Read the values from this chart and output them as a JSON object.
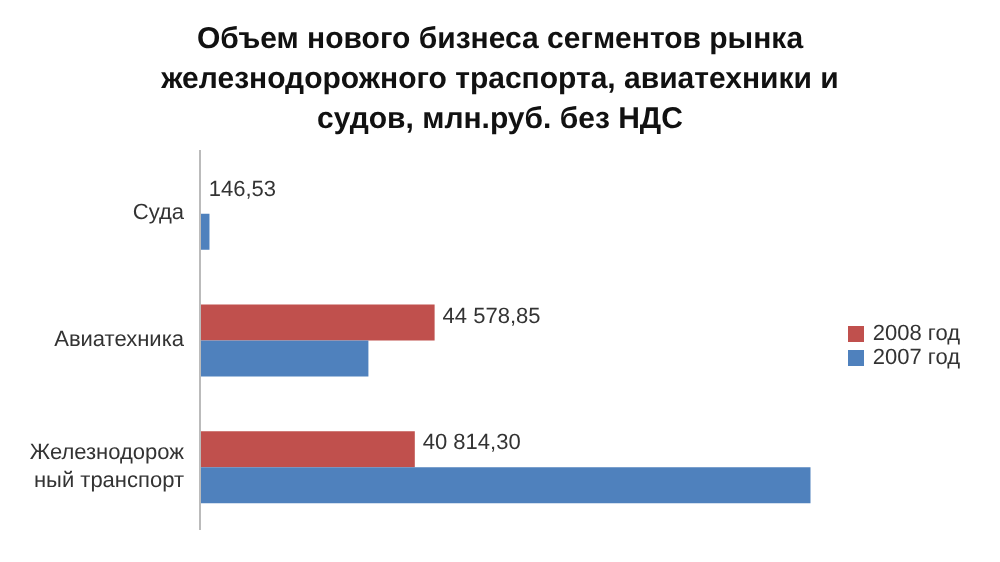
{
  "chart_data": {
    "type": "bar",
    "orientation": "horizontal",
    "title": "Объем нового бизнеса сегментов рынка железнодорожного траспорта, авиатехники  и судов, млн.руб. без НДС",
    "categories": [
      "Суда",
      "Авиатехника",
      "Железнодорожный транспорт"
    ],
    "series": [
      {
        "name": "2008 год",
        "color": "#c0504d",
        "values": [
          146.53,
          44578.85,
          40814.3
        ],
        "value_labels": [
          "146,53",
          "44 578,85",
          "40 814,30"
        ]
      },
      {
        "name": "2007 год",
        "color": "#4f81bd",
        "values": [
          1800,
          32000,
          116000
        ]
      }
    ],
    "legend": "right",
    "grid": false
  }
}
